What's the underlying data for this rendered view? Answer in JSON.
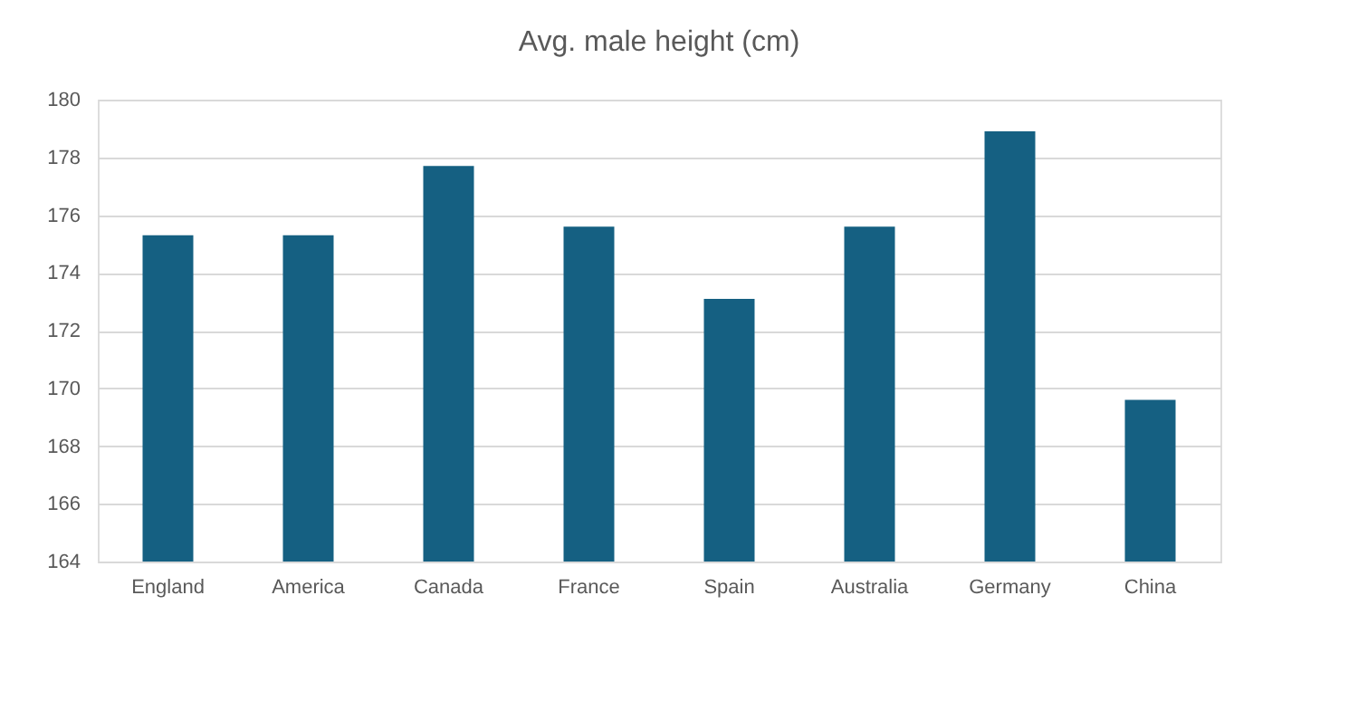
{
  "chart_data": {
    "type": "bar",
    "title": "Avg. male height (cm)",
    "categories": [
      "England",
      "America",
      "Canada",
      "France",
      "Spain",
      "Australia",
      "Germany",
      "China"
    ],
    "values": [
      175.3,
      175.3,
      177.7,
      175.6,
      173.1,
      175.6,
      178.9,
      169.6
    ],
    "color": "#156082",
    "ylim": [
      164,
      180
    ],
    "yticks": [
      164,
      166,
      168,
      170,
      172,
      174,
      176,
      178,
      180
    ],
    "grid": "y"
  }
}
